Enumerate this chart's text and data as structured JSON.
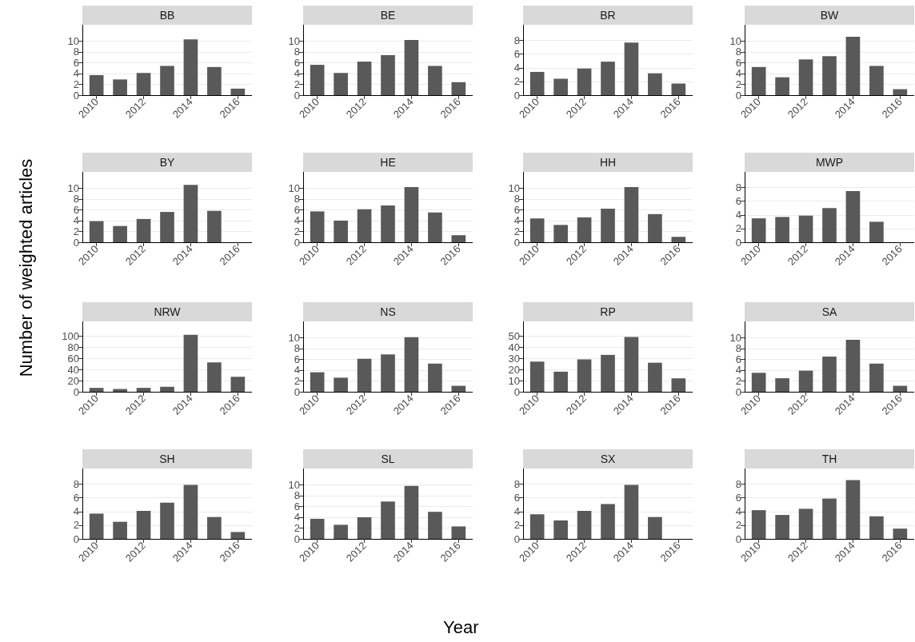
{
  "chart_data": [
    {
      "type": "bar",
      "title": "BB",
      "x": [
        2010,
        2011,
        2012,
        2013,
        2014,
        2015,
        2016
      ],
      "values": [
        3.7,
        2.9,
        4.1,
        5.4,
        10.3,
        5.2,
        1.2
      ],
      "color": "#595959",
      "xlim": [
        2009.4,
        2016.6
      ],
      "xticks": [
        2010,
        2012,
        2014,
        2016
      ],
      "ylim": [
        0,
        13
      ],
      "yticks": [
        0,
        2,
        4,
        6,
        8,
        10
      ],
      "grid": "y"
    },
    {
      "type": "bar",
      "title": "BE",
      "x": [
        2010,
        2011,
        2012,
        2013,
        2014,
        2015,
        2016
      ],
      "values": [
        5.6,
        4.1,
        6.2,
        7.4,
        10.2,
        5.4,
        2.4
      ],
      "color": "#595959",
      "xlim": [
        2009.4,
        2016.6
      ],
      "xticks": [
        2010,
        2012,
        2014,
        2016
      ],
      "ylim": [
        0,
        13
      ],
      "yticks": [
        0,
        2,
        4,
        6,
        8,
        10
      ],
      "grid": "y"
    },
    {
      "type": "bar",
      "title": "BR",
      "x": [
        2010,
        2011,
        2012,
        2013,
        2014,
        2015,
        2016
      ],
      "values": [
        3.4,
        2.4,
        3.9,
        4.9,
        7.7,
        3.2,
        1.7
      ],
      "color": "#595959",
      "xlim": [
        2009.4,
        2016.6
      ],
      "xticks": [
        2010,
        2012,
        2014,
        2016
      ],
      "ylim": [
        0,
        10.3
      ],
      "yticks": [
        0,
        2,
        4,
        6,
        8
      ],
      "grid": "y"
    },
    {
      "type": "bar",
      "title": "BW",
      "x": [
        2010,
        2011,
        2012,
        2013,
        2014,
        2015,
        2016
      ],
      "values": [
        5.2,
        3.3,
        6.6,
        7.2,
        10.8,
        5.4,
        1.1
      ],
      "color": "#595959",
      "xlim": [
        2009.4,
        2016.6
      ],
      "xticks": [
        2010,
        2012,
        2014,
        2016
      ],
      "ylim": [
        0,
        13
      ],
      "yticks": [
        0,
        2,
        4,
        6,
        8,
        10
      ],
      "grid": "y"
    },
    {
      "type": "bar",
      "title": "BY",
      "ylabel": "Number of weighted articles",
      "x": [
        2010,
        2011,
        2012,
        2013,
        2014,
        2015
      ],
      "values": [
        3.9,
        3.0,
        4.3,
        5.6,
        10.6,
        5.8
      ],
      "color": "#595959",
      "xlim": [
        2009.4,
        2016.6
      ],
      "xticks": [
        2010,
        2012,
        2014,
        2016
      ],
      "ylim": [
        0,
        13
      ],
      "yticks": [
        0,
        2,
        4,
        6,
        8,
        10
      ],
      "grid": "y"
    },
    {
      "type": "bar",
      "title": "HE",
      "x": [
        2010,
        2011,
        2012,
        2013,
        2014,
        2015,
        2016
      ],
      "values": [
        5.7,
        4.0,
        6.1,
        6.8,
        10.2,
        5.5,
        1.3
      ],
      "color": "#595959",
      "xlim": [
        2009.4,
        2016.6
      ],
      "xticks": [
        2010,
        2012,
        2014,
        2016
      ],
      "ylim": [
        0,
        13
      ],
      "yticks": [
        0,
        2,
        4,
        6,
        8,
        10
      ],
      "grid": "y"
    },
    {
      "type": "bar",
      "title": "HH",
      "x": [
        2010,
        2011,
        2012,
        2013,
        2014,
        2015,
        2016
      ],
      "values": [
        4.4,
        3.2,
        4.6,
        6.2,
        10.2,
        5.2,
        1.0
      ],
      "color": "#595959",
      "xlim": [
        2009.4,
        2016.6
      ],
      "xticks": [
        2010,
        2012,
        2014,
        2016
      ],
      "ylim": [
        0,
        13
      ],
      "yticks": [
        0,
        2,
        4,
        6,
        8,
        10
      ],
      "grid": "y"
    },
    {
      "type": "bar",
      "title": "MWP",
      "x": [
        2010,
        2011,
        2012,
        2013,
        2014,
        2015
      ],
      "values": [
        3.5,
        3.7,
        3.9,
        5.0,
        7.5,
        3.0
      ],
      "color": "#595959",
      "xlim": [
        2009.4,
        2016.6
      ],
      "xticks": [
        2010,
        2012,
        2014,
        2016
      ],
      "ylim": [
        0,
        10.3
      ],
      "yticks": [
        0,
        2,
        4,
        6,
        8
      ],
      "grid": "y"
    },
    {
      "type": "bar",
      "title": "NRW",
      "x": [
        2010,
        2011,
        2012,
        2013,
        2014,
        2015,
        2016
      ],
      "values": [
        7,
        5,
        7,
        9,
        103,
        53,
        27
      ],
      "color": "#595959",
      "xlim": [
        2009.4,
        2016.6
      ],
      "xticks": [
        2010,
        2012,
        2014,
        2016
      ],
      "ylim": [
        0,
        127
      ],
      "yticks": [
        0,
        20,
        40,
        60,
        80,
        100
      ],
      "grid": "y"
    },
    {
      "type": "bar",
      "title": "NS",
      "x": [
        2010,
        2011,
        2012,
        2013,
        2014,
        2015,
        2016
      ],
      "values": [
        3.6,
        2.6,
        6.1,
        6.9,
        10.1,
        5.2,
        1.1
      ],
      "color": "#595959",
      "xlim": [
        2009.4,
        2016.6
      ],
      "xticks": [
        2010,
        2012,
        2014,
        2016
      ],
      "ylim": [
        0,
        13
      ],
      "yticks": [
        0,
        2,
        4,
        6,
        8,
        10
      ],
      "grid": "y"
    },
    {
      "type": "bar",
      "title": "RP",
      "x": [
        2010,
        2011,
        2012,
        2013,
        2014,
        2015,
        2016
      ],
      "values": [
        27,
        18,
        29,
        33,
        49,
        26,
        12
      ],
      "color": "#595959",
      "xlim": [
        2009.4,
        2016.6
      ],
      "xticks": [
        2010,
        2012,
        2014,
        2016
      ],
      "ylim": [
        0,
        63
      ],
      "yticks": [
        0,
        10,
        20,
        30,
        40,
        50
      ],
      "grid": "y"
    },
    {
      "type": "bar",
      "title": "SA",
      "x": [
        2010,
        2011,
        2012,
        2013,
        2014,
        2015,
        2016
      ],
      "values": [
        3.5,
        2.5,
        3.9,
        6.5,
        9.6,
        5.2,
        1.1
      ],
      "color": "#595959",
      "xlim": [
        2009.4,
        2016.6
      ],
      "xticks": [
        2010,
        2012,
        2014,
        2016
      ],
      "ylim": [
        0,
        13
      ],
      "yticks": [
        0,
        2,
        4,
        6,
        8,
        10
      ],
      "grid": "y"
    },
    {
      "type": "bar",
      "title": "SH",
      "x": [
        2010,
        2011,
        2012,
        2013,
        2014,
        2015,
        2016
      ],
      "values": [
        3.7,
        2.5,
        4.1,
        5.3,
        7.9,
        3.2,
        1.0
      ],
      "color": "#595959",
      "xlim": [
        2009.4,
        2016.6
      ],
      "xticks": [
        2010,
        2012,
        2014,
        2016
      ],
      "ylim": [
        0,
        10.3
      ],
      "yticks": [
        0,
        2,
        4,
        6,
        8
      ],
      "grid": "y"
    },
    {
      "type": "bar",
      "title": "SL",
      "xlabel": "Year",
      "x": [
        2010,
        2011,
        2012,
        2013,
        2014,
        2015,
        2016
      ],
      "values": [
        3.7,
        2.6,
        4.0,
        6.9,
        9.8,
        5.0,
        2.3
      ],
      "color": "#595959",
      "xlim": [
        2009.4,
        2016.6
      ],
      "xticks": [
        2010,
        2012,
        2014,
        2016
      ],
      "ylim": [
        0,
        13
      ],
      "yticks": [
        0,
        2,
        4,
        6,
        8,
        10
      ],
      "grid": "y"
    },
    {
      "type": "bar",
      "title": "SX",
      "x": [
        2010,
        2011,
        2012,
        2013,
        2014,
        2015
      ],
      "values": [
        3.6,
        2.7,
        4.1,
        5.1,
        7.9,
        3.2
      ],
      "color": "#595959",
      "xlim": [
        2009.4,
        2016.6
      ],
      "xticks": [
        2010,
        2012,
        2014,
        2016
      ],
      "ylim": [
        0,
        10.3
      ],
      "yticks": [
        0,
        2,
        4,
        6,
        8
      ],
      "grid": "y"
    },
    {
      "type": "bar",
      "title": "TH",
      "x": [
        2010,
        2011,
        2012,
        2013,
        2014,
        2015,
        2016
      ],
      "values": [
        4.2,
        3.5,
        4.4,
        5.9,
        8.6,
        3.3,
        1.5
      ],
      "color": "#595959",
      "xlim": [
        2009.4,
        2016.6
      ],
      "xticks": [
        2010,
        2012,
        2014,
        2016
      ],
      "ylim": [
        0,
        10.3
      ],
      "yticks": [
        0,
        2,
        4,
        6,
        8
      ],
      "grid": "y"
    }
  ]
}
